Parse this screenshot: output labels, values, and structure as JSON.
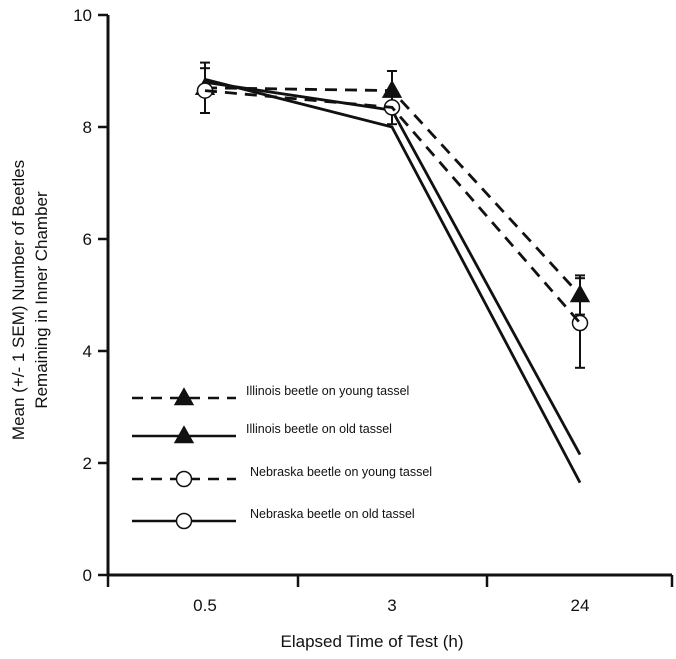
{
  "chart_data": {
    "type": "line",
    "categories": [
      "0.5",
      "3",
      "24"
    ],
    "xlabel": "Elapsed Time of Test (h)",
    "ylabel": [
      "Mean (+/- 1 SEM) Number of Beetles",
      "Remaining in Inner Chamber"
    ],
    "ylim": [
      0,
      10
    ],
    "yticks": [
      "0",
      "2",
      "4",
      "6",
      "8",
      "10"
    ],
    "grid": false,
    "legend_position": "bottom-left",
    "series": [
      {
        "name": "Illinois beetle on young tassel",
        "marker": "triangle",
        "line": "dashed",
        "values": [
          8.7,
          8.65,
          5.0
        ],
        "sem": [
          0.45,
          0.35,
          0.35
        ]
      },
      {
        "name": "Illinois beetle on old tassel",
        "marker": "triangle",
        "line": "solid",
        "values": [
          8.8,
          8.3,
          2.15
        ],
        "sem": [
          0.3,
          0.3,
          0.3
        ]
      },
      {
        "name": "Nebraska beetle on young tassel",
        "marker": "circle",
        "line": "dashed",
        "values": [
          8.65,
          8.35,
          4.5
        ],
        "sem": [
          0.4,
          0.3,
          0.8
        ]
      },
      {
        "name": "Nebraska beetle on old tassel",
        "marker": "circle",
        "line": "solid",
        "values": [
          8.85,
          8.0,
          1.65
        ],
        "sem": [
          0.35,
          0.45,
          0.65
        ]
      }
    ],
    "colors": {
      "line": "#111111",
      "marker_fill_triangle": "#111111",
      "marker_fill_circle": "#ffffff"
    }
  }
}
